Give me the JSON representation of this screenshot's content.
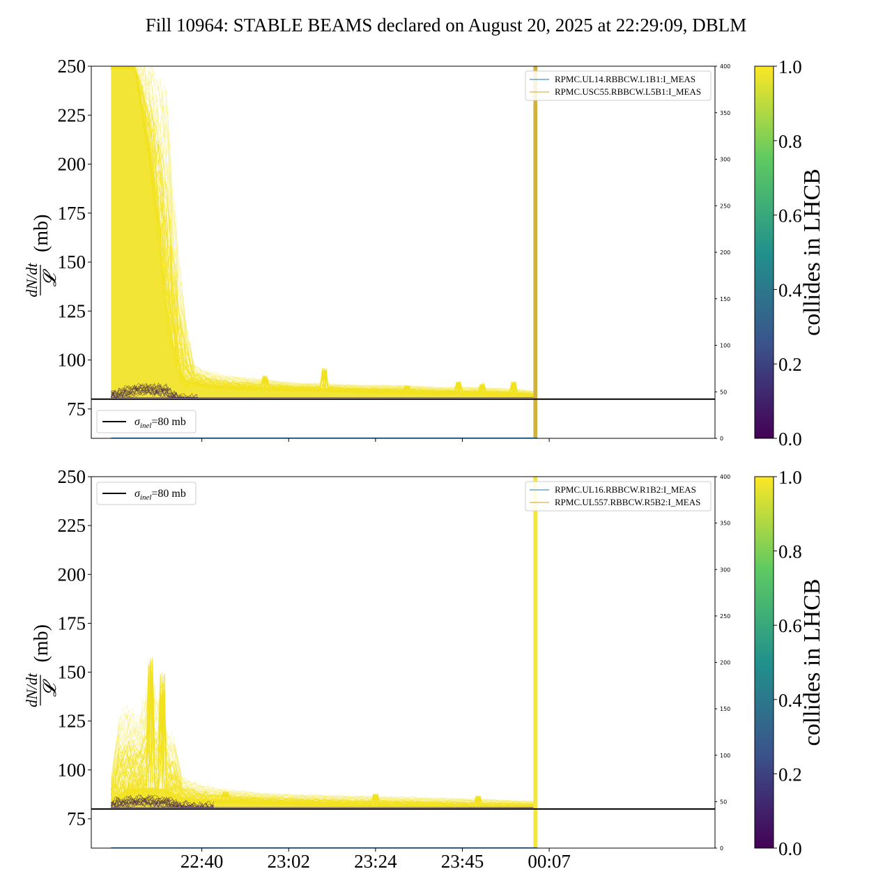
{
  "figure": {
    "title": "Fill 10964: STABLE BEAMS declared on August 20, 2025 at 22:29:09, DBLM"
  },
  "colors": {
    "viridis": [
      "#440154",
      "#3b528b",
      "#21918c",
      "#5ec962",
      "#fde725"
    ],
    "yellow": "#f2e21f",
    "dark": "#3d1f4a",
    "blue_line": "#1f77b4",
    "orange_line": "#d4a020",
    "band": "#c9a51c"
  },
  "chart_data": [
    {
      "type": "line",
      "panel": "top",
      "ylabel_numer": "dN/dt",
      "ylabel_denom": "𝓛",
      "ylabel_unit": "(mb)",
      "ylim": [
        60,
        250
      ],
      "yticks": [
        75,
        100,
        125,
        150,
        175,
        200,
        225,
        250
      ],
      "xlim_minutes": [
        -28,
        130
      ],
      "xtick_labels": [
        "22:40",
        "23:02",
        "23:24",
        "23:45",
        "00:07"
      ],
      "xtick_minutes": [
        0,
        22,
        44,
        66,
        88
      ],
      "y2lim": [
        0,
        400
      ],
      "y2ticks": [
        0,
        50,
        100,
        150,
        200,
        250,
        300,
        350,
        400
      ],
      "reference_line": {
        "label_pre": "σ",
        "label_sub": "inel",
        "label_post": "=80 mb",
        "value": 80
      },
      "legend": [
        "RPMC.UL14.RBBCW.L1B1:I_MEAS",
        "RPMC.USC55.RBBCW.L5B1:I_MEAS"
      ],
      "band_minutes": [
        84,
        85
      ],
      "band_color_key": "band",
      "start_minutes": -23,
      "end_minutes": 84,
      "envelope": [
        [
          -23,
          250
        ],
        [
          -17,
          250
        ],
        [
          -13,
          250
        ],
        [
          -9,
          230
        ],
        [
          -6,
          150
        ],
        [
          -4,
          120
        ],
        [
          -2,
          98
        ],
        [
          0,
          95
        ],
        [
          5,
          92
        ],
        [
          10,
          91
        ],
        [
          15,
          90
        ],
        [
          20,
          89
        ],
        [
          25,
          88
        ],
        [
          30,
          88
        ],
        [
          40,
          87
        ],
        [
          50,
          87
        ],
        [
          60,
          86
        ],
        [
          70,
          86
        ],
        [
          80,
          85
        ],
        [
          84,
          84
        ]
      ],
      "core": [
        [
          -23,
          250
        ],
        [
          -17,
          250
        ],
        [
          -13,
          200
        ],
        [
          -9,
          130
        ],
        [
          -6,
          96
        ],
        [
          -4,
          90
        ],
        [
          0,
          88
        ],
        [
          5,
          87
        ],
        [
          10,
          86.5
        ],
        [
          20,
          86
        ],
        [
          30,
          85.5
        ],
        [
          40,
          85
        ],
        [
          50,
          84.5
        ],
        [
          60,
          84
        ],
        [
          70,
          83.5
        ],
        [
          80,
          83
        ],
        [
          84,
          82.5
        ]
      ],
      "spikes": [
        [
          16,
          92
        ],
        [
          31,
          96
        ],
        [
          52,
          87
        ],
        [
          65,
          89
        ],
        [
          71,
          88
        ],
        [
          79,
          89
        ]
      ],
      "dark_band": [
        [
          -23,
          84
        ],
        [
          -15,
          87
        ],
        [
          -9,
          86
        ],
        [
          -6,
          82
        ],
        [
          -4,
          81
        ]
      ]
    },
    {
      "type": "line",
      "panel": "bottom",
      "ylabel_numer": "dN/dt",
      "ylabel_denom": "𝓛",
      "ylabel_unit": "(mb)",
      "ylim": [
        60,
        250
      ],
      "yticks": [
        75,
        100,
        125,
        150,
        175,
        200,
        225,
        250
      ],
      "xlim_minutes": [
        -28,
        130
      ],
      "xtick_labels": [
        "22:40",
        "23:02",
        "23:24",
        "23:45",
        "00:07"
      ],
      "xtick_minutes": [
        0,
        22,
        44,
        66,
        88
      ],
      "y2lim": [
        0,
        400
      ],
      "y2ticks": [
        0,
        50,
        100,
        150,
        200,
        250,
        300,
        350,
        400
      ],
      "reference_line": {
        "label_pre": "σ",
        "label_sub": "inel",
        "label_post": "=80 mb",
        "value": 80
      },
      "legend": [
        "RPMC.UL16.RBBCW.R1B2:I_MEAS",
        "RPMC.UL557.RBBCW.R5B2:I_MEAS"
      ],
      "band_minutes": [
        84,
        85
      ],
      "band_color_key": "yellow",
      "start_minutes": -23,
      "end_minutes": 84,
      "envelope": [
        [
          -23,
          95
        ],
        [
          -21,
          125
        ],
        [
          -19,
          130
        ],
        [
          -16,
          125
        ],
        [
          -13,
          145
        ],
        [
          -11,
          135
        ],
        [
          -9,
          120
        ],
        [
          -7,
          115
        ],
        [
          -5,
          96
        ],
        [
          0,
          92
        ],
        [
          5,
          90
        ],
        [
          10,
          89
        ],
        [
          15,
          88
        ],
        [
          20,
          87.5
        ],
        [
          30,
          87
        ],
        [
          40,
          86.5
        ],
        [
          50,
          86
        ],
        [
          60,
          85.5
        ],
        [
          70,
          85
        ],
        [
          84,
          84
        ]
      ],
      "core": [
        [
          -23,
          85
        ],
        [
          -19,
          90
        ],
        [
          -13,
          91
        ],
        [
          -9,
          90
        ],
        [
          -5,
          86
        ],
        [
          0,
          85
        ],
        [
          10,
          84.5
        ],
        [
          20,
          84
        ],
        [
          30,
          83.5
        ],
        [
          40,
          83
        ],
        [
          50,
          83
        ],
        [
          60,
          82.5
        ],
        [
          70,
          82.2
        ],
        [
          84,
          82
        ]
      ],
      "spikes": [
        [
          -13,
          158
        ],
        [
          -10,
          150
        ],
        [
          6,
          89
        ],
        [
          44,
          88
        ],
        [
          70,
          87
        ]
      ],
      "dark_band": [
        [
          -23,
          84
        ],
        [
          -15,
          86
        ],
        [
          -9,
          85
        ],
        [
          -5,
          83
        ],
        [
          0,
          82
        ]
      ]
    }
  ],
  "colorbar": {
    "label": "collides in LHCB",
    "ticks": [
      "0.0",
      "0.2",
      "0.4",
      "0.6",
      "0.8",
      "1.0"
    ],
    "tick_values": [
      0.0,
      0.2,
      0.4,
      0.6,
      0.8,
      1.0
    ]
  }
}
